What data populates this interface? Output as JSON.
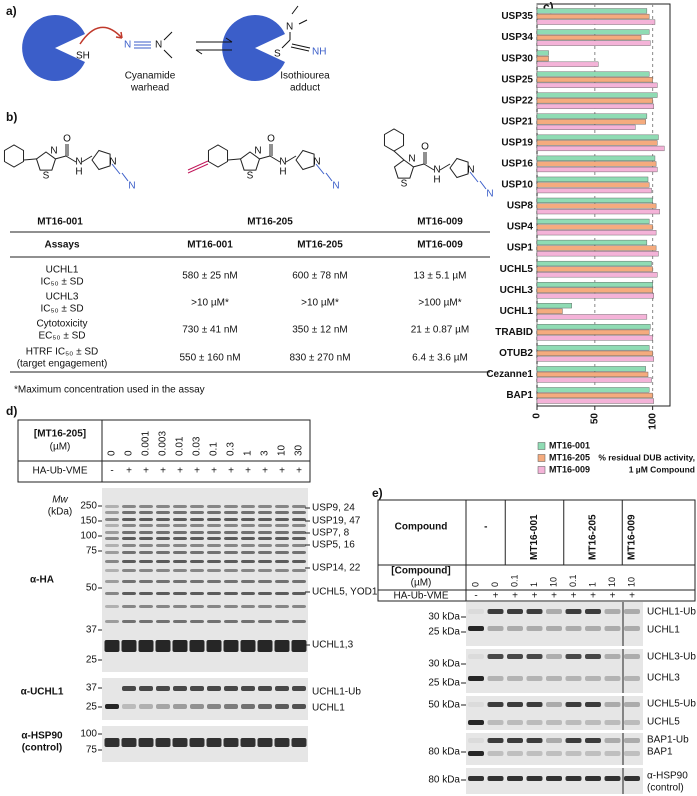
{
  "panel_labels": {
    "a": "a)",
    "b": "b)",
    "c": "c)",
    "d": "d)",
    "e": "e)"
  },
  "scheme": {
    "thiol": "SH",
    "nitrile_n": "N",
    "amine_n": "N",
    "adduct_s": "S",
    "adduct_n": "N",
    "imine": "NH",
    "warhead": [
      "Cyanamide",
      "warhead"
    ],
    "adduct": [
      "Isothiourea",
      "adduct"
    ]
  },
  "compounds": {
    "names": [
      "MT16-001",
      "MT16-205",
      "MT16-009"
    ],
    "atoms": [
      "S",
      "N",
      "N",
      "H",
      "O",
      "N",
      "N"
    ]
  },
  "table": {
    "header": [
      "Assays",
      "MT16-001",
      "MT16-205",
      "MT16-009"
    ],
    "rows": [
      [
        [
          "UCHL1",
          "IC₅₀ ± SD"
        ],
        "580 ± 25 nM",
        "600 ± 78 nM",
        "13 ± 5.1 µM"
      ],
      [
        [
          "UCHL3",
          "IC₅₀ ± SD"
        ],
        ">10 µM*",
        ">10 µM*",
        ">100 µM*"
      ],
      [
        [
          "Cytotoxicity",
          "EC₅₀ ± SD"
        ],
        "730 ± 41 nM",
        "350 ± 12 nM",
        "21 ± 0.87 µM"
      ],
      [
        [
          "HTRF IC₅₀ ± SD",
          "(target engagement)"
        ],
        "550 ± 160 nM",
        "830 ± 270 nM",
        "6.4 ± 3.6 µM"
      ]
    ],
    "footnote": "*Maximum concentration used in the assay"
  },
  "chart_data": {
    "type": "bar",
    "orientation": "horizontal",
    "categories": [
      "USP35",
      "USP34",
      "USP30",
      "USP25",
      "USP22",
      "USP21",
      "USP19",
      "USP16",
      "USP10",
      "USP8",
      "USP4",
      "USP1",
      "UCHL5",
      "UCHL3",
      "UCHL1",
      "TRABID",
      "OTUB2",
      "Cezanne1",
      "BAP1"
    ],
    "series": [
      {
        "name": "MT16-001",
        "color": "#8fdcb4",
        "values": [
          95,
          97,
          10,
          97,
          104,
          95,
          105,
          102,
          96,
          100,
          97,
          95,
          99,
          100,
          30,
          98,
          97,
          94,
          97
        ]
      },
      {
        "name": "MT16-205",
        "color": "#f5ab7e",
        "values": [
          97,
          90,
          10,
          100,
          100,
          94,
          104,
          103,
          97,
          103,
          100,
          103,
          100,
          100,
          22,
          97,
          100,
          96,
          100
        ]
      },
      {
        "name": "MT16-009",
        "color": "#f4b3d8",
        "values": [
          102,
          98,
          53,
          104,
          101,
          85,
          110,
          104,
          99,
          106,
          103,
          105,
          104,
          101,
          95,
          100,
          101,
          99,
          101
        ]
      }
    ],
    "xlim": [
      0,
      115
    ],
    "xticks": [
      0,
      50,
      100
    ],
    "grid": true,
    "legend": "bottom-left",
    "x_label": [
      "% residual DUB activity,",
      "1 µM Compound"
    ]
  },
  "blot_d": {
    "compound_label": "[MT16-205]",
    "unit": "(µM)",
    "concentrations": [
      "0",
      "0",
      "0.001",
      "0.003",
      "0.01",
      "0.03",
      "0.1",
      "0.3",
      "1",
      "3",
      "10",
      "30"
    ],
    "probe": "HA-Ub-VME",
    "probe_signs": [
      "-",
      "+",
      "+",
      "+",
      "+",
      "+",
      "+",
      "+",
      "+",
      "+",
      "+",
      "+"
    ],
    "mw_label": [
      "Mw",
      "(kDa)"
    ],
    "ha": {
      "antibody": "α-HA",
      "markers": [
        "250",
        "150",
        "100",
        "75",
        "50",
        "37",
        "25"
      ],
      "bands": [
        "USP9, 24",
        "USP19, 47",
        "USP7, 8",
        "USP5, 16",
        "USP14, 22",
        "UCHL5, YOD1",
        "UCHL1,3"
      ]
    },
    "uchl1": {
      "antibody": "α-UCHL1",
      "markers": [
        "37",
        "25"
      ],
      "bands": [
        "UCHL1-Ub",
        "UCHL1"
      ]
    },
    "hsp90": {
      "antibody": [
        "α-HSP90",
        "(control)"
      ],
      "markers": [
        "100",
        "75"
      ]
    }
  },
  "blot_e": {
    "compound_header": "Compound",
    "groups": [
      "-",
      "MT16-001",
      "MT16-205",
      "MT16-009"
    ],
    "conc_label": [
      "[Compound]",
      "(µM)"
    ],
    "concentrations": [
      "0",
      "0",
      "0.1",
      "1",
      "10",
      "0.1",
      "1",
      "10",
      "10"
    ],
    "probe": "HA-Ub-VME",
    "probe_signs": [
      "-",
      "+",
      "+",
      "+",
      "+",
      "+",
      "+",
      "+",
      "+"
    ],
    "blots": [
      {
        "markers": [
          "30 kDa",
          "25 kDa"
        ],
        "bands": [
          "UCHL1-Ub",
          "UCHL1"
        ]
      },
      {
        "markers": [
          "30 kDa",
          "25 kDa"
        ],
        "bands": [
          "UCHL3-Ub",
          "UCHL3"
        ]
      },
      {
        "markers": [
          "50 kDa"
        ],
        "bands": [
          "UCHL5-Ub",
          "UCHL5"
        ]
      },
      {
        "markers": [
          "80 kDa"
        ],
        "bands": [
          "BAP1-Ub",
          "BAP1"
        ]
      },
      {
        "markers": [
          "80 kDa"
        ],
        "bands": [
          "α-HSP90",
          "(control)"
        ]
      }
    ]
  }
}
